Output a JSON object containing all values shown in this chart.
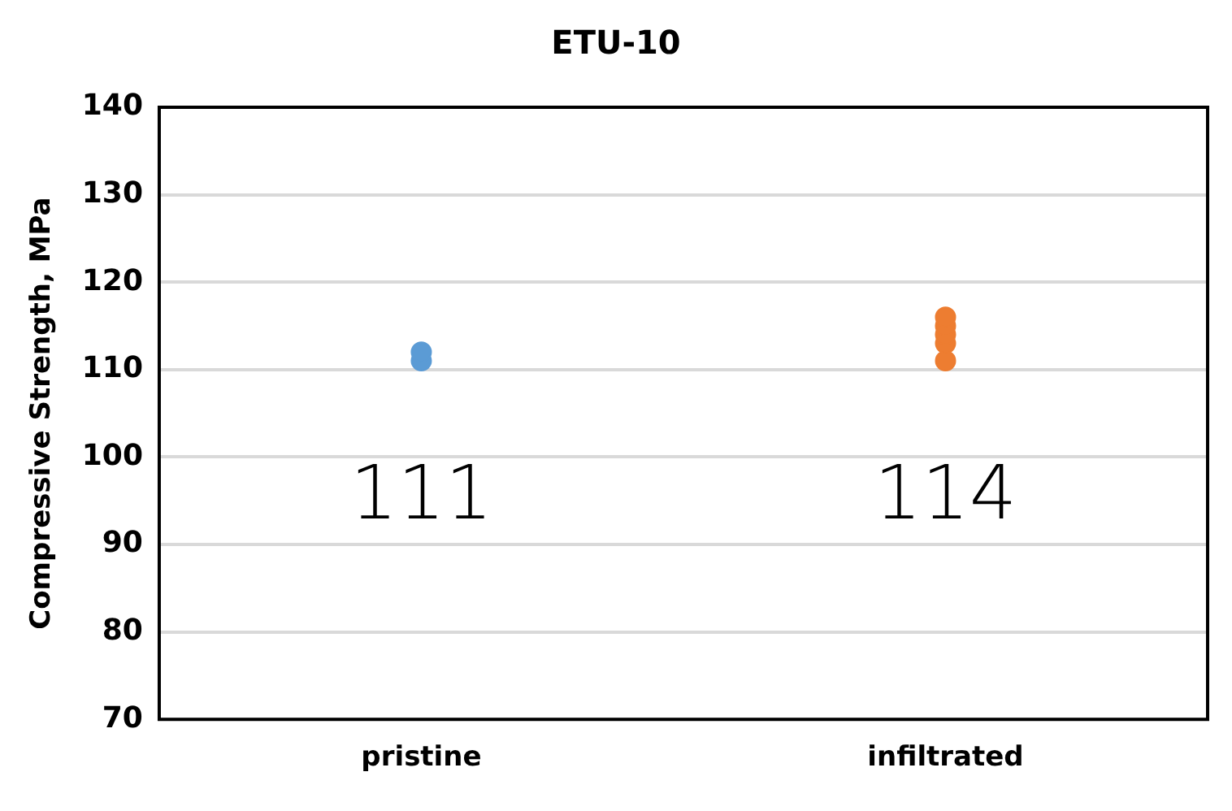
{
  "chart_data": {
    "type": "scatter",
    "title": "ETU-10",
    "ylabel": "Compressive Strength, MPa",
    "categories": [
      "pristine",
      "infiltrated"
    ],
    "series": [
      {
        "color": "#5b9bd5",
        "x": [
          "pristine",
          "pristine"
        ],
        "values": [
          111,
          112
        ]
      },
      {
        "color": "#ed7d31",
        "x": [
          "infiltrated",
          "infiltrated",
          "infiltrated",
          "infiltrated",
          "infiltrated"
        ],
        "values": [
          111,
          113,
          114,
          115,
          116
        ]
      }
    ],
    "ylim": [
      70,
      140
    ],
    "yticks": [
      70,
      80,
      90,
      100,
      110,
      120,
      130,
      140
    ],
    "grid": "y",
    "legend": false,
    "marker": "circle",
    "annotations": [
      "111",
      "114"
    ]
  }
}
